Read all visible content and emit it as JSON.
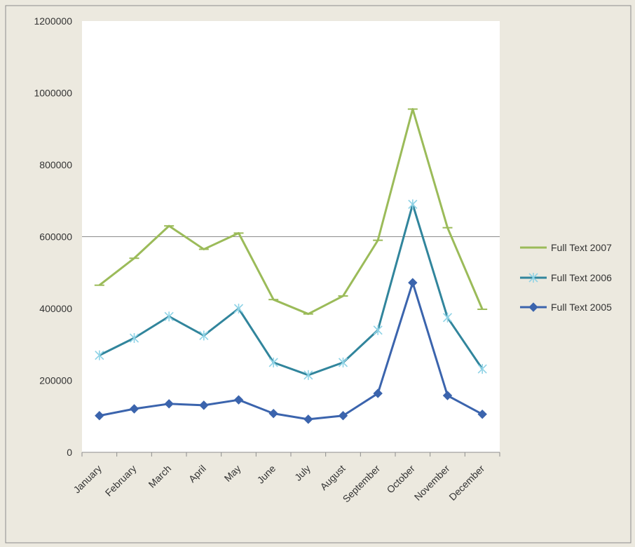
{
  "chart_data": {
    "type": "line",
    "title": "",
    "xlabel": "",
    "ylabel": "",
    "categories": [
      "January",
      "February",
      "March",
      "April",
      "May",
      "June",
      "July",
      "August",
      "September",
      "October",
      "November",
      "December"
    ],
    "ylim": [
      0,
      1200000
    ],
    "yticks": [
      "0",
      "200000",
      "400000",
      "600000",
      "800000",
      "1000000",
      "1200000"
    ],
    "reference_line": 600000,
    "grid": false,
    "legend_position": "right",
    "series": [
      {
        "name": "Full Text 2007",
        "color": "#9bbb59",
        "marker": "dash",
        "values": [
          465000,
          540000,
          630000,
          565000,
          610000,
          425000,
          385000,
          435000,
          590000,
          955000,
          625000,
          398000
        ]
      },
      {
        "name": "Full Text 2006",
        "color": "#31859c",
        "marker": "star",
        "values": [
          270000,
          318000,
          378000,
          325000,
          400000,
          250000,
          215000,
          250000,
          340000,
          690000,
          375000,
          232000
        ]
      },
      {
        "name": "Full Text 2005",
        "color": "#3b64ad",
        "marker": "diamond",
        "values": [
          102000,
          121000,
          135000,
          131000,
          146000,
          108000,
          92000,
          102000,
          164000,
          472000,
          158000,
          106000
        ]
      }
    ]
  }
}
